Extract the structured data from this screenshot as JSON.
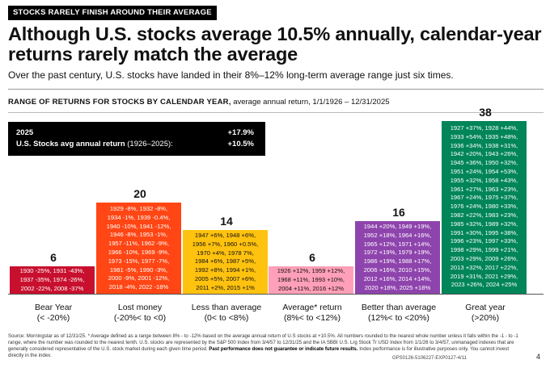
{
  "header": {
    "tag": "STOCKS RARELY FINISH AROUND THEIR AVERAGE",
    "title": "Although U.S. stocks average 10.5% annually, calendar-year returns rarely match the average",
    "subtitle": "Over the past century, U.S. stocks have landed in their 8%–12% long-term average range just six times."
  },
  "chart_data": {
    "type": "bar",
    "title_bold": "RANGE OF RETURNS FOR STOCKS BY CALENDAR YEAR,",
    "title_rest": " average annual return, 1/1/1926 – 12/31/2025",
    "legend": {
      "row1_label": "2025",
      "row1_value": "+17.9%",
      "row2_label": "U.S. Stocks avg annual return",
      "row2_range": " (1926–2025):",
      "row2_value": "+10.5%"
    },
    "ylim": [
      0,
      38
    ],
    "categories": [
      {
        "name": "Bear Year",
        "range": "(< -20%)",
        "count": 6,
        "color": "#c8102e",
        "text_color": "#ffffff",
        "lines": [
          "1930 -25%, 1931 -43%,",
          "1937 -35%, 1974 -26%,",
          "2002 -22%, 2008 -37%"
        ]
      },
      {
        "name": "Lost money",
        "range": "(-20%< to <0)",
        "count": 20,
        "color": "#ff4614",
        "text_color": "#ffffff",
        "lines": [
          "1929 -8%, 1932 -8%,",
          "1934 -1%, 1939 -0.4%,",
          "1940 -10%, 1941 -12%,",
          "1946 -8%, 1953 -1%,",
          "1957 -11%, 1962 -9%,",
          "1966 -10%, 1969 -9%,",
          "1973 -15%, 1977 -7%,",
          "1981 -5%, 1990 -3%,",
          "2000 -9%, 2001 -12%,",
          "2018 -4%, 2022 -18%"
        ]
      },
      {
        "name": "Less than average",
        "range": "(0< to <8%)",
        "count": 14,
        "color": "#ffc20e",
        "text_color": "#111111",
        "lines": [
          "1947 +6%, 1948 +6%,",
          "1956 +7%, 1960 +0.5%,",
          "1970 +4%, 1978 7%,",
          "1984 +6%, 1987 +5%,",
          "1992 +8%, 1994 +1%,",
          "2005 +5%, 2007 +6%,",
          "2011 +2%, 2015 +1%"
        ]
      },
      {
        "name": "Average* return",
        "range": "(8%< to <12%)",
        "count": 6,
        "color": "#ff9fb8",
        "text_color": "#111111",
        "lines": [
          "1926 +12%, 1959 +12%,",
          "1968 +11%, 1993 +10%,",
          "2004 +11%, 2016 +12%"
        ]
      },
      {
        "name": "Better than average",
        "range": "(12%< to <20%)",
        "count": 16,
        "color": "#8e44ad",
        "text_color": "#ffffff",
        "lines": [
          "1944 +20%, 1949 +19%,",
          "1952 +18%, 1964 +16%,",
          "1965 +12%, 1971 +14%,",
          "1972 +19%, 1979 +19%,",
          "1986 +19%, 1988 +17%,",
          "2006 +16%, 2010 +15%,",
          "2012 +16%, 2014 +14%,",
          "2020 +18%, 2025 +18%"
        ]
      },
      {
        "name": "Great year",
        "range": "(>20%)",
        "count": 38,
        "color": "#008558",
        "text_color": "#ffffff",
        "lines": [
          "1927 +37%, 1928 +44%,",
          "1933 +54%, 1935 +48%,",
          "1936 +34%, 1938 +31%,",
          "1942 +20%, 1943 +26%,",
          "1945 +36%, 1950 +32%,",
          "1951 +24%, 1954 +53%,",
          "1955 +32%, 1958 +43%,",
          "1961 +27%, 1963 +23%,",
          "1967 +24%, 1975 +37%,",
          "1976 +24%, 1980 +33%,",
          "1982 +22%, 1983 +23%,",
          "1985 +32%, 1989 +32%,",
          "1991 +30%, 1995 +38%,",
          "1996 +23%, 1997 +33%,",
          "1998 +29%, 1999 +21%,",
          "2003 +29%, 2009 +26%,",
          "2013 +32%, 2017 +22%,",
          "2019 +31%, 2021 +29%,",
          "2023 +26%, 2024 +25%"
        ]
      }
    ]
  },
  "footnote": {
    "text": "Source: Morningstar as of 12/31/25. * Average defined as a range between 8% - to -12% based on the average annual return of U.S stocks at +10.5%. All numbers rounded to the nearest whole number unless it falls within the -1 - to -1 range, where the number was rounded to the nearest tenth. U.S. stocks are represented by the S&P 500 Index from 3/4/57 to 12/31/25 and the IA SBBI U.S. Lrg Stock Tr USD Index from 1/1/26 to 3/4/57, unmanaged indexes that are generally considered representative of the U.S. stock market during each given time period. ",
    "bold": "Past performance does not guarantee or indicate future results.",
    "tail": " Index performance is for illustrative purposes only. You cannot invest directly in the index.",
    "code": "GPS0126-5106227-EXP0127-4/11",
    "page": "4"
  }
}
